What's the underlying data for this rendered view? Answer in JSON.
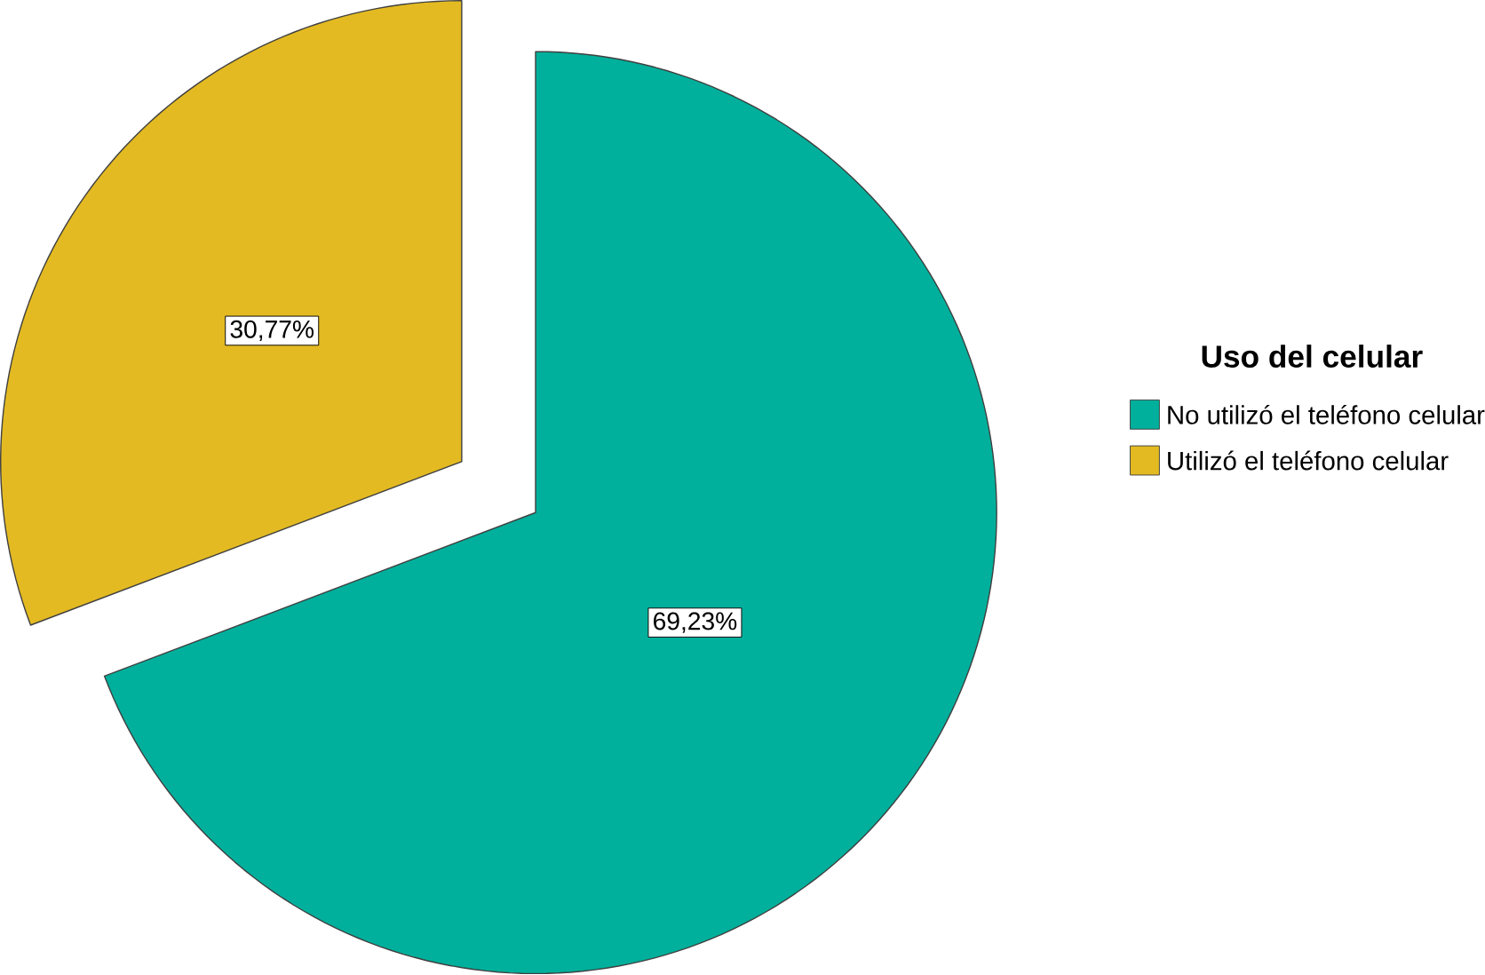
{
  "chart_data": {
    "type": "pie",
    "legend_title": "Uso del celular",
    "categories": [
      "No utilizó el teléfono celular",
      "Utilizó el teléfono celular"
    ],
    "values": [
      69.23,
      30.77
    ],
    "colors": [
      "#00b09c",
      "#e3ba22"
    ],
    "value_labels": [
      "69,23%",
      "30,77%"
    ],
    "legend": "right"
  }
}
